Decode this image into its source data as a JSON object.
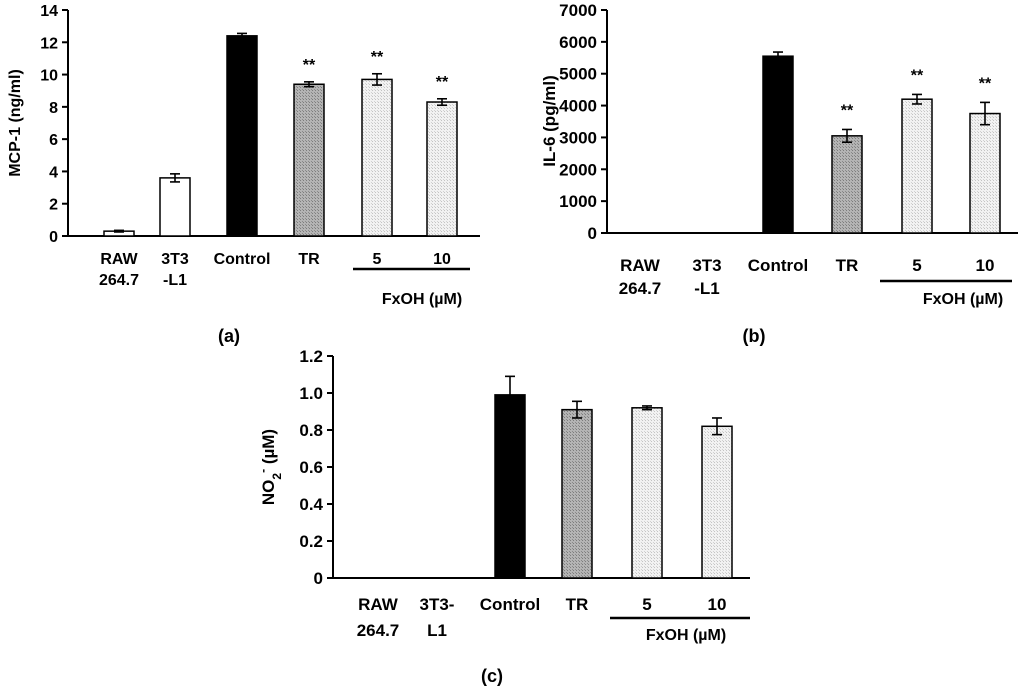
{
  "figure": {
    "colors": {
      "axis": "#000000",
      "control": "#000000",
      "tr": "#a9a9a9",
      "fxoh": "#eeeeee",
      "raw": "#ffffff",
      "t3t3": "#ffffff"
    }
  },
  "chart_data": [
    {
      "panel": "a",
      "panel_label": "(a)",
      "type": "bar",
      "ylabel": "MCP-1 (ng/ml)",
      "ylim": [
        0,
        14
      ],
      "yticks": [
        "0",
        "2",
        "4",
        "6",
        "8",
        "10",
        "12",
        "14"
      ],
      "categories": [
        [
          "RAW",
          "264.7"
        ],
        [
          "3T3",
          "-L1"
        ],
        [
          "Control"
        ],
        [
          "TR"
        ],
        [
          "5"
        ],
        [
          "10"
        ]
      ],
      "values": [
        0.3,
        3.6,
        12.4,
        9.4,
        9.7,
        8.3
      ],
      "errors": [
        0.05,
        0.25,
        0.15,
        0.15,
        0.35,
        0.2
      ],
      "fills": [
        "raw",
        "t3t3",
        "control",
        "tr",
        "fxoh",
        "fxoh"
      ],
      "annotations": [
        "",
        "",
        "",
        "**",
        "**",
        "**"
      ],
      "group_label": "FxOH (µM)"
    },
    {
      "panel": "b",
      "panel_label": "(b)",
      "type": "bar",
      "ylabel": "IL-6 (pg/ml)",
      "ylim": [
        0,
        7000
      ],
      "yticks": [
        "0",
        "1000",
        "2000",
        "3000",
        "4000",
        "5000",
        "6000",
        "7000"
      ],
      "categories": [
        [
          "RAW",
          "264.7"
        ],
        [
          "3T3",
          "-L1"
        ],
        [
          "Control"
        ],
        [
          "TR"
        ],
        [
          "5"
        ],
        [
          "10"
        ]
      ],
      "values": [
        0,
        0,
        5550,
        3050,
        4200,
        3750
      ],
      "errors": [
        0,
        0,
        130,
        200,
        150,
        350
      ],
      "fills": [
        "raw",
        "t3t3",
        "control",
        "tr",
        "fxoh",
        "fxoh"
      ],
      "annotations": [
        "",
        "",
        "",
        "**",
        "**",
        "**"
      ],
      "group_label": "FxOH (µM)"
    },
    {
      "panel": "c",
      "panel_label": "(c)",
      "type": "bar",
      "ylabel_main": "NO",
      "ylabel_sub": "2",
      "ylabel_sup": "-",
      "ylabel_rest": " (µM)",
      "ylim": [
        0,
        1.2
      ],
      "yticks": [
        "0",
        "0.2",
        "0.4",
        "0.6",
        "0.8",
        "1.0",
        "1.2"
      ],
      "categories": [
        [
          "RAW",
          "264.7"
        ],
        [
          "3T3-",
          "L1"
        ],
        [
          "Control"
        ],
        [
          "TR"
        ],
        [
          "5"
        ],
        [
          "10"
        ]
      ],
      "values": [
        0,
        0,
        0.99,
        0.91,
        0.92,
        0.82
      ],
      "errors": [
        0,
        0,
        0.1,
        0.045,
        0.01,
        0.045
      ],
      "fills": [
        "raw",
        "t3t3",
        "control",
        "tr",
        "fxoh",
        "fxoh"
      ],
      "annotations": [
        "",
        "",
        "",
        "",
        "",
        ""
      ],
      "group_label": "FxOH (µM)"
    }
  ]
}
